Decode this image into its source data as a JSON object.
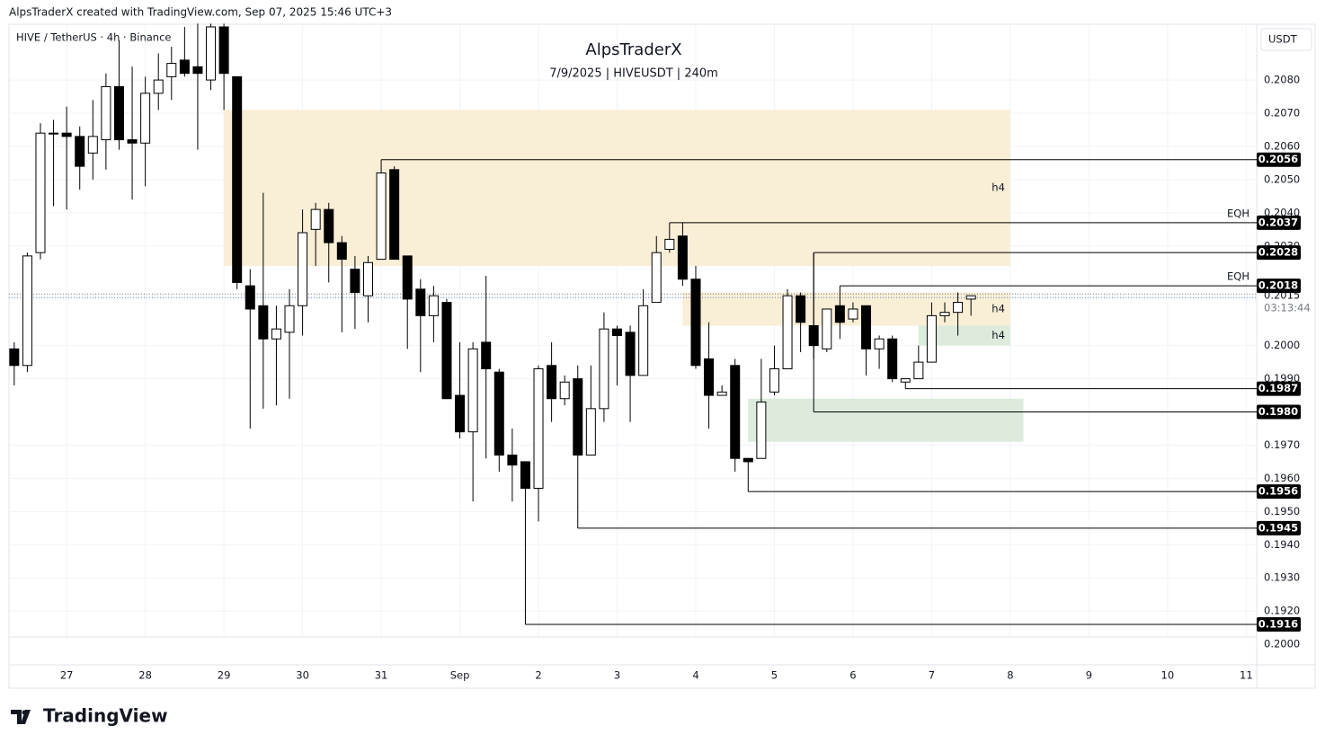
{
  "header": {
    "credit": "AlpsTraderX created with TradingView.com, Sep 07, 2025 15:46 UTC+3",
    "symbol": "HIVE / TetherUS · 4h · Binance",
    "currency": "USDT",
    "brand": "TradingView"
  },
  "chart_data": {
    "type": "candlestick",
    "title": "AlpsTraderX",
    "subtitle": "7/9/2025 | HIVEUSDT | 240m",
    "ohlc": [
      [
        0.1999,
        0.2001,
        0.1988,
        0.1994
      ],
      [
        0.1994,
        0.2028,
        0.1992,
        0.2027
      ],
      [
        0.2028,
        0.2067,
        0.2026,
        0.2064
      ],
      [
        0.2064,
        0.2068,
        0.2042,
        0.2064
      ],
      [
        0.2064,
        0.2072,
        0.2041,
        0.2063
      ],
      [
        0.2063,
        0.2066,
        0.2047,
        0.2054
      ],
      [
        0.2058,
        0.2074,
        0.205,
        0.2063
      ],
      [
        0.2062,
        0.2082,
        0.2053,
        0.2078
      ],
      [
        0.2078,
        0.2092,
        0.2059,
        0.2062
      ],
      [
        0.2062,
        0.2084,
        0.2044,
        0.2061
      ],
      [
        0.2061,
        0.2081,
        0.2048,
        0.2076
      ],
      [
        0.2076,
        0.2088,
        0.2071,
        0.208
      ],
      [
        0.2081,
        0.209,
        0.2074,
        0.2085
      ],
      [
        0.2086,
        0.2096,
        0.2081,
        0.2082
      ],
      [
        0.2084,
        0.2097,
        0.2059,
        0.2082
      ],
      [
        0.208,
        0.2097,
        0.2077,
        0.2096
      ],
      [
        0.2096,
        0.2097,
        0.2071,
        0.2082
      ],
      [
        0.2081,
        0.2081,
        0.2017,
        0.2019
      ],
      [
        0.2018,
        0.2023,
        0.1975,
        0.2011
      ],
      [
        0.2012,
        0.2046,
        0.1981,
        0.2002
      ],
      [
        0.2002,
        0.2012,
        0.1982,
        0.2005
      ],
      [
        0.2004,
        0.2017,
        0.1984,
        0.2012
      ],
      [
        0.2012,
        0.2041,
        0.2003,
        0.2034
      ],
      [
        0.2035,
        0.2043,
        0.2024,
        0.2041
      ],
      [
        0.2041,
        0.2043,
        0.2019,
        0.2031
      ],
      [
        0.2031,
        0.2033,
        0.2004,
        0.2026
      ],
      [
        0.2023,
        0.2027,
        0.2005,
        0.2016
      ],
      [
        0.2015,
        0.2027,
        0.2007,
        0.2025
      ],
      [
        0.2026,
        0.2056,
        0.2026,
        0.2052
      ],
      [
        0.2053,
        0.2054,
        0.2026,
        0.2026
      ],
      [
        0.2027,
        0.2027,
        0.1999,
        0.2014
      ],
      [
        0.2017,
        0.202,
        0.1992,
        0.2009
      ],
      [
        0.2009,
        0.2018,
        0.2001,
        0.2015
      ],
      [
        0.2013,
        0.2014,
        0.1984,
        0.1984
      ],
      [
        0.1985,
        0.2001,
        0.1972,
        0.1974
      ],
      [
        0.1974,
        0.2001,
        0.1953,
        0.1999
      ],
      [
        0.2001,
        0.2021,
        0.1966,
        0.1993
      ],
      [
        0.1992,
        0.1993,
        0.1962,
        0.1967
      ],
      [
        0.1967,
        0.1975,
        0.1953,
        0.1964
      ],
      [
        0.1965,
        0.1965,
        0.1916,
        0.1957
      ],
      [
        0.1957,
        0.1994,
        0.1947,
        0.1993
      ],
      [
        0.1994,
        0.2001,
        0.1977,
        0.1984
      ],
      [
        0.1984,
        0.1991,
        0.1982,
        0.1989
      ],
      [
        0.199,
        0.1994,
        0.1945,
        0.1967
      ],
      [
        0.1967,
        0.1994,
        0.1967,
        0.1981
      ],
      [
        0.1981,
        0.201,
        0.1977,
        0.2005
      ],
      [
        0.2005,
        0.2006,
        0.1988,
        0.2003
      ],
      [
        0.2004,
        0.2006,
        0.1977,
        0.1991
      ],
      [
        0.1991,
        0.2017,
        0.1991,
        0.2012
      ],
      [
        0.2013,
        0.2033,
        0.2013,
        0.2028
      ],
      [
        0.2029,
        0.2037,
        0.2028,
        0.2032
      ],
      [
        0.2033,
        0.2037,
        0.2018,
        0.202
      ],
      [
        0.202,
        0.2024,
        0.1993,
        0.1994
      ],
      [
        0.1996,
        0.2007,
        0.1975,
        0.1985
      ],
      [
        0.1985,
        0.1988,
        0.1985,
        0.1986
      ],
      [
        0.1994,
        0.1996,
        0.1962,
        0.1966
      ],
      [
        0.1966,
        0.1966,
        0.1956,
        0.1965
      ],
      [
        0.1966,
        0.1996,
        0.1966,
        0.1983
      ],
      [
        0.1986,
        0.2,
        0.1985,
        0.1993
      ],
      [
        0.1993,
        0.2017,
        0.1993,
        0.2015
      ],
      [
        0.2015,
        0.2016,
        0.1998,
        0.2007
      ],
      [
        0.2006,
        0.2028,
        0.1996,
        0.2
      ],
      [
        0.1999,
        0.2011,
        0.1998,
        0.2011
      ],
      [
        0.2012,
        0.2018,
        0.2002,
        0.2007
      ],
      [
        0.2008,
        0.2013,
        0.2007,
        0.2011
      ],
      [
        0.2012,
        0.2012,
        0.1991,
        0.1999
      ],
      [
        0.1999,
        0.2003,
        0.1993,
        0.2002
      ],
      [
        0.2002,
        0.2003,
        0.1989,
        0.199
      ],
      [
        0.1989,
        0.199,
        0.1987,
        0.199
      ],
      [
        0.199,
        0.2,
        0.199,
        0.1995
      ],
      [
        0.1995,
        0.2013,
        0.1995,
        0.2009
      ],
      [
        0.2009,
        0.2013,
        0.2007,
        0.201
      ],
      [
        0.201,
        0.2016,
        0.2003,
        0.2013
      ],
      [
        0.2014,
        0.2015,
        0.2009,
        0.2015
      ]
    ],
    "up_color": "#ffffff",
    "down_color": "#000000",
    "xlim": [
      -0.4,
      94.8
    ],
    "xticks": [
      {
        "value": 4,
        "label": "27"
      },
      {
        "value": 10,
        "label": "28"
      },
      {
        "value": 16,
        "label": "29"
      },
      {
        "value": 22,
        "label": "30"
      },
      {
        "value": 28,
        "label": "31"
      },
      {
        "value": 34,
        "label": "Sep"
      },
      {
        "value": 40,
        "label": "2"
      },
      {
        "value": 46,
        "label": "3"
      },
      {
        "value": 52,
        "label": "4"
      },
      {
        "value": 58,
        "label": "5"
      },
      {
        "value": 64,
        "label": "6"
      },
      {
        "value": 70,
        "label": "7"
      },
      {
        "value": 76,
        "label": "8"
      },
      {
        "value": 82,
        "label": "9"
      },
      {
        "value": 88,
        "label": "10"
      },
      {
        "value": 94,
        "label": "11"
      }
    ],
    "ylim": [
      0.19122,
      0.20968
    ],
    "yticks": [
      {
        "value": 0.208,
        "label": "0.2080"
      },
      {
        "value": 0.207,
        "label": "0.2070"
      },
      {
        "value": 0.206,
        "label": "0.2060"
      },
      {
        "value": 0.205,
        "label": "0.2050"
      },
      {
        "value": 0.204,
        "label": "0.2040"
      },
      {
        "value": 0.203,
        "label": "0.2030"
      },
      {
        "value": 0.2,
        "label": "0.2000"
      },
      {
        "value": 0.199,
        "label": "0.1990"
      },
      {
        "value": 0.197,
        "label": "0.1970"
      },
      {
        "value": 0.196,
        "label": "0.1960"
      },
      {
        "value": 0.195,
        "label": "0.1950"
      },
      {
        "value": 0.194,
        "label": "0.1940"
      },
      {
        "value": 0.193,
        "label": "0.1930"
      },
      {
        "value": 0.192,
        "label": "0.1920"
      }
    ],
    "grid": true,
    "zones": [
      {
        "xlim": [
          16,
          76
        ],
        "ylim": [
          0.2024,
          0.2071
        ],
        "label": "h4",
        "color": "#f9eed6"
      },
      {
        "xlim": [
          51,
          76
        ],
        "ylim": [
          0.2006,
          0.2016
        ],
        "label": "h4",
        "color": "#f9eed6"
      },
      {
        "xlim": [
          69,
          76
        ],
        "ylim": [
          0.2,
          0.2006
        ],
        "label": "h4",
        "color": "#dcebdc"
      },
      {
        "xlim": [
          56,
          77
        ],
        "ylim": [
          0.1971,
          0.1984
        ],
        "color": "#dcebdc"
      }
    ],
    "levels": [
      {
        "x": 28,
        "value": 0.2056
      },
      {
        "x": 50,
        "value": 0.2037,
        "note": "EQH"
      },
      {
        "x": 61,
        "value": 0.2028
      },
      {
        "x": 63,
        "value": 0.2018,
        "note": "EQH"
      },
      {
        "x": 68,
        "value": 0.1987
      },
      {
        "x": 61,
        "value": 0.198,
        "label": "0.1980"
      },
      {
        "x": 56,
        "value": 0.1956
      },
      {
        "x": 43,
        "value": 0.1945
      },
      {
        "x": 39,
        "value": 0.1916
      }
    ],
    "last_price": 0.2015,
    "countdown": "03:13:44",
    "pane2_label": "0.2000"
  }
}
